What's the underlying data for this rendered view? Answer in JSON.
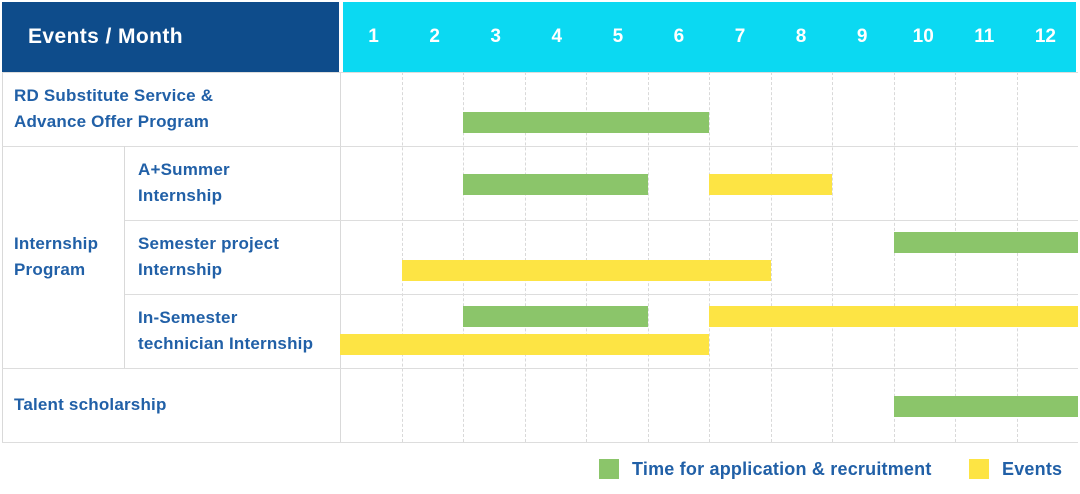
{
  "colors": {
    "header_bg": "#0E4C8B",
    "month_header_bg": "#0BD9F2",
    "header_text": "#FFFFFF",
    "label_text": "#2160A7",
    "application_green": "#8BC56A",
    "events_yellow": "#FDE444",
    "grid_line": "#DDDDDD"
  },
  "header": {
    "title": "Events / Month",
    "months": [
      "1",
      "2",
      "3",
      "4",
      "5",
      "6",
      "7",
      "8",
      "9",
      "10",
      "11",
      "12"
    ]
  },
  "legend": {
    "items": [
      {
        "key": "application",
        "label": "Time for application & recruitment",
        "color": "#8BC56A"
      },
      {
        "key": "events",
        "label": "Events",
        "color": "#FDE444"
      }
    ]
  },
  "chart_data": {
    "type": "table",
    "subtype": "gantt-schedule",
    "title": "Events / Month",
    "months": [
      "1",
      "2",
      "3",
      "4",
      "5",
      "6",
      "7",
      "8",
      "9",
      "10",
      "11",
      "12"
    ],
    "series": [
      {
        "key": "application",
        "name": "Time for application & recruitment",
        "color": "#8BC56A"
      },
      {
        "key": "events",
        "name": "Events",
        "color": "#FDE444"
      }
    ],
    "group": {
      "label_lines": [
        "Internship",
        "Program"
      ],
      "first_row": 1,
      "row_count": 3
    },
    "rows": [
      {
        "group": "",
        "label_lines": [
          "RD Substitute Service &",
          "Advance Offer Program"
        ],
        "bars": [
          {
            "series": "application",
            "start_month": 3,
            "end_month": 6,
            "lane": "lower"
          }
        ]
      },
      {
        "group": "Internship Program",
        "label_lines": [
          "A+Summer",
          "Internship"
        ],
        "bars": [
          {
            "series": "application",
            "start_month": 3,
            "end_month": 5,
            "lane": "middle"
          },
          {
            "series": "events",
            "start_month": 7,
            "end_month": 8,
            "lane": "middle"
          }
        ]
      },
      {
        "group": "Internship Program",
        "label_lines": [
          "Semester project",
          "Internship"
        ],
        "bars": [
          {
            "series": "application",
            "start_month": 10,
            "end_month": 12,
            "lane": "upper"
          },
          {
            "series": "events",
            "start_month": 2,
            "end_month": 7,
            "lane": "lower"
          }
        ]
      },
      {
        "group": "Internship Program",
        "label_lines": [
          "In-Semester",
          "technician Internship"
        ],
        "bars": [
          {
            "series": "application",
            "start_month": 3,
            "end_month": 5,
            "lane": "upper"
          },
          {
            "series": "events",
            "start_month": 7,
            "end_month": 12,
            "lane": "upper"
          },
          {
            "series": "events",
            "start_month": 1,
            "end_month": 6,
            "lane": "lower"
          }
        ]
      },
      {
        "group": "",
        "label_lines": [
          "Talent scholarship"
        ],
        "bars": [
          {
            "series": "application",
            "start_month": 10,
            "end_month": 12,
            "lane": "middle"
          }
        ]
      }
    ]
  }
}
